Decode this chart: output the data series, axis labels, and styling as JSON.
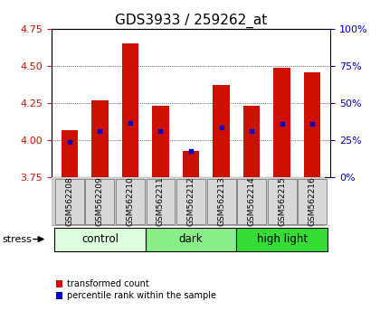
{
  "title": "GDS3933 / 259262_at",
  "samples": [
    "GSM562208",
    "GSM562209",
    "GSM562210",
    "GSM562211",
    "GSM562212",
    "GSM562213",
    "GSM562214",
    "GSM562215",
    "GSM562216"
  ],
  "bar_bottom": 3.75,
  "bar_tops": [
    4.07,
    4.27,
    4.65,
    4.23,
    3.93,
    4.37,
    4.23,
    4.49,
    4.46
  ],
  "blue_dots": [
    3.99,
    4.06,
    4.12,
    4.06,
    3.93,
    4.09,
    4.06,
    4.11,
    4.11
  ],
  "ylim": [
    3.75,
    4.75
  ],
  "yticks_left": [
    3.75,
    4.0,
    4.25,
    4.5,
    4.75
  ],
  "yticks_right": [
    0,
    25,
    50,
    75,
    100
  ],
  "bar_color": "#cc1100",
  "dot_color": "#0000cc",
  "groups": [
    {
      "label": "control",
      "start": 0,
      "end": 3,
      "color": "#ddffdd"
    },
    {
      "label": "dark",
      "start": 3,
      "end": 6,
      "color": "#88ee88"
    },
    {
      "label": "high light",
      "start": 6,
      "end": 9,
      "color": "#33dd33"
    }
  ],
  "stress_label": "stress",
  "legend_red": "transformed count",
  "legend_blue": "percentile rank within the sample",
  "background_color": "#ffffff",
  "label_color_left": "#cc1100",
  "label_color_right": "#0000cc",
  "title_fontsize": 11,
  "tick_fontsize": 8,
  "sample_fontsize": 6.5,
  "group_fontsize": 8.5
}
